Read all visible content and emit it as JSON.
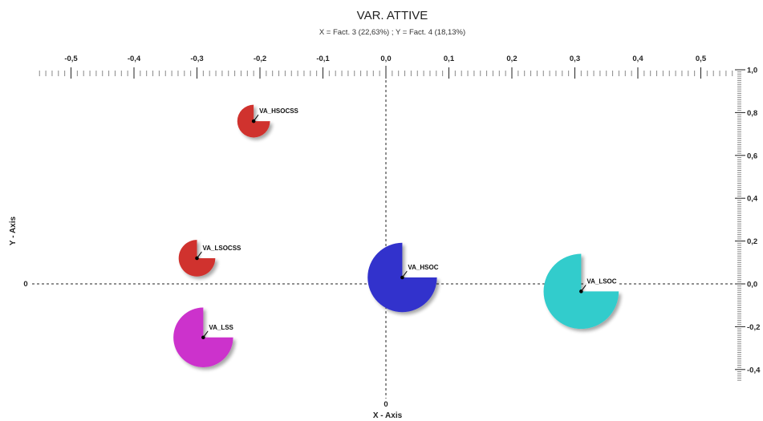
{
  "chart_data": {
    "type": "scatter",
    "title": "VAR. ATTIVE",
    "subtitle": "X = Fact. 3 (22,63%) ; Y = Fact. 4 (18,13%)",
    "xlabel": "X - Axis",
    "ylabel": "Y - Axis",
    "xlim": [
      -0.6,
      0.6
    ],
    "ylim": [
      -0.5,
      1.0
    ],
    "x_ticks": [
      "-0,5",
      "-0,4",
      "-0,3",
      "-0,2",
      "-0,1",
      "0,0",
      "0,1",
      "0,2",
      "0,3",
      "0,4",
      "0,5"
    ],
    "y_ticks": [
      "-0,4",
      "-0,2",
      "0,0",
      "0,2",
      "0,4",
      "0,6",
      "0,8",
      "1,0"
    ],
    "x_origin_label": "0",
    "y_origin_label": "0",
    "grid": false,
    "points": [
      {
        "label": "VA_HSOCSS",
        "x": -0.21,
        "y": 0.76,
        "size": 0.34,
        "color": "#d0332f",
        "cut": "sector"
      },
      {
        "label": "VA_LSOCSS",
        "x": -0.3,
        "y": 0.12,
        "size": 0.38,
        "color": "#d0332f",
        "cut": "sector"
      },
      {
        "label": "VA_LSS",
        "x": -0.29,
        "y": -0.25,
        "size": 0.62,
        "color": "#cc33cc",
        "cut": "sector"
      },
      {
        "label": "VA_HSOC",
        "x": 0.026,
        "y": 0.03,
        "size": 0.72,
        "color": "#3333cc",
        "cut": "sector"
      },
      {
        "label": "VA_LSOC",
        "x": 0.31,
        "y": -0.035,
        "size": 0.78,
        "color": "#33cccc",
        "cut": "sector"
      }
    ]
  }
}
